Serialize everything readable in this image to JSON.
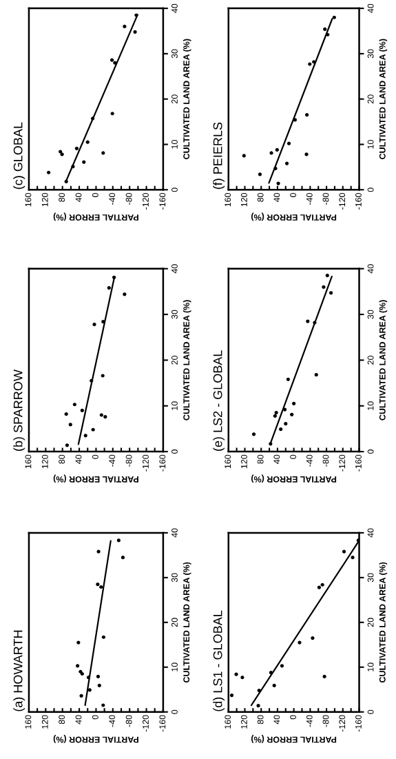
{
  "chart_data": [
    {
      "type": "scatter",
      "title": "(a) HOWARTH",
      "xlabel": "PARTIAL ERROR (%)",
      "ylabel": "CULTIVATED LAND AREA (%)",
      "ylim": [
        0,
        40
      ],
      "yticks": [
        0,
        10,
        20,
        30,
        40
      ],
      "xlim": [
        160,
        -160
      ],
      "xticks": [
        160,
        {
          "value": 140,
          "label": null
        },
        120,
        {
          "value": 100,
          "label": null
        },
        80,
        {
          "value": 60,
          "label": null
        },
        40,
        {
          "value": 20,
          "label": null
        },
        0,
        {
          "value": -20,
          "label": null
        },
        -40,
        {
          "value": -60,
          "label": null
        },
        -80,
        {
          "value": -100,
          "label": null
        },
        -120,
        {
          "value": -140,
          "label": null
        },
        -160
      ],
      "marker": "circle",
      "series": [
        {
          "color": "#000000",
          "values": [
            10.3,
            15.5,
            9.0,
            8.5,
            3.6,
            7.7,
            4.9,
            7.9,
            5.9,
            1.5,
            16.7,
            28.5,
            27.9,
            35.8,
            38.3,
            34.5
          ],
          "x": [
            44,
            42,
            37,
            33,
            35,
            18,
            15,
            -5,
            -8,
            -17,
            -18,
            -4,
            -12,
            -6,
            -54,
            -64
          ]
        },
        {
          "type": "line",
          "color": "#000000",
          "marker": "none",
          "values": [
            1.5,
            38.2
          ],
          "x": [
            26,
            -35
          ]
        }
      ]
    },
    {
      "type": "scatter",
      "title": "(b) SPARROW",
      "xlabel": "PARTIAL ERROR (%)",
      "ylabel": "CULTIVATED LAND AREA (%)",
      "ylim": [
        0,
        40
      ],
      "yticks": [
        0,
        10,
        20,
        30,
        40
      ],
      "xlim": [
        160,
        -160
      ],
      "xticks": [
        160,
        {
          "value": 140,
          "label": null
        },
        120,
        {
          "value": 100,
          "label": null
        },
        80,
        {
          "value": 60,
          "label": null
        },
        40,
        {
          "value": 20,
          "label": null
        },
        0,
        {
          "value": -20,
          "label": null
        },
        -40,
        {
          "value": -60,
          "label": null
        },
        -80,
        {
          "value": -100,
          "label": null
        },
        -120,
        {
          "value": -140,
          "label": null
        },
        -160
      ],
      "marker": "circle",
      "series": [
        {
          "color": "#000000",
          "values": [
            1.4,
            5.9,
            8.2,
            10.3,
            9.0,
            3.5,
            4.8,
            15.5,
            8.0,
            7.6,
            16.6,
            27.8,
            28.4,
            35.8,
            38.1,
            34.4
          ],
          "x": [
            69,
            61,
            71,
            51,
            33,
            25,
            7,
            11,
            -13,
            -22,
            -16,
            4,
            -17,
            -31,
            -43,
            -68
          ]
        },
        {
          "type": "line",
          "color": "#000000",
          "marker": "none",
          "values": [
            1.6,
            37.8
          ],
          "x": [
            42,
            -43
          ]
        }
      ]
    },
    {
      "type": "scatter",
      "title": "(c) GLOBAL",
      "xlabel": "PARTIAL ERROR (%)",
      "ylabel": "CULTIVATED LAND AREA (%)",
      "ylim": [
        0,
        40
      ],
      "yticks": [
        0,
        10,
        20,
        30,
        40
      ],
      "xlim": [
        160,
        -160
      ],
      "xticks": [
        160,
        {
          "value": 140,
          "label": null
        },
        120,
        {
          "value": 100,
          "label": null
        },
        80,
        {
          "value": 60,
          "label": null
        },
        40,
        {
          "value": 20,
          "label": null
        },
        0,
        {
          "value": -20,
          "label": null
        },
        -40,
        {
          "value": -60,
          "label": null
        },
        -80,
        {
          "value": -100,
          "label": null
        },
        -120,
        {
          "value": -140,
          "label": null
        },
        -160
      ],
      "marker": "circle",
      "series": [
        {
          "color": "#000000",
          "values": [
            3.8,
            8.4,
            7.8,
            1.8,
            5.1,
            9.1,
            6.1,
            10.5,
            15.7,
            8.1,
            16.8,
            28.6,
            28.0,
            36.0,
            34.8,
            38.5
          ],
          "x": [
            113,
            85,
            81,
            71,
            55,
            46,
            29,
            20,
            8,
            -17,
            -39,
            -38,
            -45,
            -68,
            -93,
            -96
          ]
        },
        {
          "type": "line",
          "color": "#000000",
          "marker": "none",
          "values": [
            2.0,
            38.6
          ],
          "x": [
            71,
            -99
          ]
        }
      ]
    },
    {
      "type": "scatter",
      "title": "(d) LS1 - GLOBAL",
      "xlabel": "PARTIAL ERROR (%)",
      "ylabel": "CULTIVATED LAND AREA (%)",
      "ylim": [
        0,
        40
      ],
      "yticks": [
        0,
        10,
        20,
        30,
        40
      ],
      "xlim": [
        160,
        -160
      ],
      "xticks": [
        160,
        {
          "value": 140,
          "label": null
        },
        120,
        {
          "value": 100,
          "label": null
        },
        80,
        {
          "value": 60,
          "label": null
        },
        40,
        {
          "value": 20,
          "label": null
        },
        0,
        {
          "value": -20,
          "label": null
        },
        -40,
        {
          "value": -60,
          "label": null
        },
        -80,
        {
          "value": -100,
          "label": null
        },
        -120,
        {
          "value": -140,
          "label": null
        },
        -160
      ],
      "marker": "circle",
      "series": [
        {
          "color": "#000000",
          "values": [
            3.7,
            8.4,
            7.7,
            1.4,
            4.8,
            8.8,
            5.9,
            10.3,
            15.5,
            16.5,
            7.9,
            27.8,
            28.4,
            35.8,
            34.5,
            38.3
          ],
          "x": [
            152,
            141,
            126,
            87,
            85,
            56,
            48,
            29,
            -14,
            -46,
            -75,
            -62,
            -70,
            -123,
            -144,
            -158
          ]
        },
        {
          "type": "line",
          "color": "#000000",
          "marker": "none",
          "values": [
            1.5,
            38.0
          ],
          "x": [
            104,
            -158
          ]
        }
      ]
    },
    {
      "type": "scatter",
      "title": "(e) LS2 - GLOBAL",
      "xlabel": "PARTIAL ERROR (%)",
      "ylabel": "CULTIVATED LAND AREA (%)",
      "ylim": [
        0,
        40
      ],
      "yticks": [
        0,
        10,
        20,
        30,
        40
      ],
      "xlim": [
        160,
        -160
      ],
      "xticks": [
        160,
        {
          "value": 140,
          "label": null
        },
        120,
        {
          "value": 100,
          "label": null
        },
        80,
        {
          "value": 60,
          "label": null
        },
        40,
        {
          "value": 20,
          "label": null
        },
        0,
        {
          "value": -20,
          "label": null
        },
        -40,
        {
          "value": -60,
          "label": null
        },
        -80,
        {
          "value": -100,
          "label": null
        },
        -120,
        {
          "value": -140,
          "label": null
        },
        -160
      ],
      "marker": "circle",
      "series": [
        {
          "color": "#000000",
          "values": [
            3.8,
            1.7,
            7.8,
            8.5,
            4.9,
            9.2,
            6.1,
            8.1,
            10.5,
            15.8,
            28.5,
            16.8,
            28.2,
            36.0,
            38.5,
            34.7
          ],
          "x": [
            98,
            57,
            46,
            43,
            32,
            22,
            20,
            5,
            0,
            14,
            -34,
            -55,
            -51,
            -73,
            -82,
            -91
          ]
        },
        {
          "type": "line",
          "color": "#000000",
          "marker": "none",
          "values": [
            1.6,
            38.3
          ],
          "x": [
            58,
            -93
          ]
        }
      ]
    },
    {
      "type": "scatter",
      "title": "(f) PEIERLS",
      "xlabel": "PARTIAL ERROR (%)",
      "ylabel": "CULTIVATED LAND AREA (%)",
      "ylim": [
        0,
        40
      ],
      "yticks": [
        0,
        10,
        20,
        30,
        40
      ],
      "xlim": [
        160,
        -160
      ],
      "xticks": [
        160,
        {
          "value": 140,
          "label": null
        },
        120,
        {
          "value": 100,
          "label": null
        },
        80,
        {
          "value": 60,
          "label": null
        },
        40,
        {
          "value": 20,
          "label": null
        },
        0,
        {
          "value": -20,
          "label": null
        },
        -40,
        {
          "value": -60,
          "label": null
        },
        -80,
        {
          "value": -100,
          "label": null
        },
        -120,
        {
          "value": -140,
          "label": null
        },
        -160
      ],
      "marker": "circle",
      "series": [
        {
          "color": "#000000",
          "values": [
            7.5,
            3.4,
            8.1,
            8.8,
            4.7,
            1.4,
            5.8,
            10.2,
            15.4,
            16.5,
            7.8,
            27.7,
            28.2,
            35.4,
            34.2,
            38.0
          ],
          "x": [
            122,
            83,
            55,
            41,
            45,
            38,
            17,
            12,
            -3,
            -32,
            -31,
            -39,
            -49,
            -76,
            -83,
            -99
          ]
        },
        {
          "type": "line",
          "color": "#000000",
          "marker": "none",
          "values": [
            1.5,
            37.7
          ],
          "x": [
            61,
            -94
          ]
        }
      ]
    }
  ]
}
